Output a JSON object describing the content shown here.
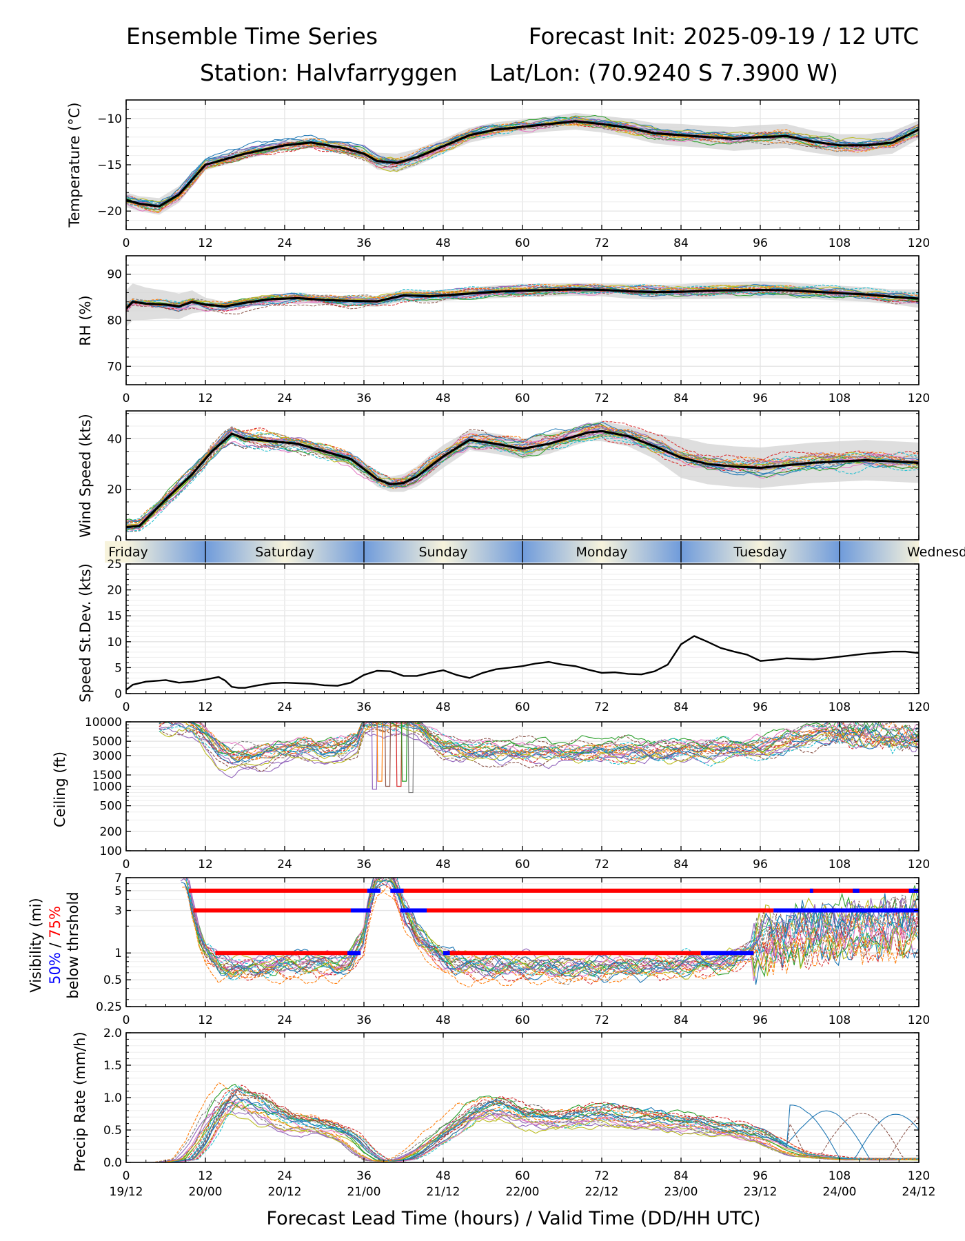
{
  "header": {
    "title": "Ensemble Time Series",
    "forecast_init": "Forecast Init: 2025-09-19 / 12 UTC",
    "station": "Station: Halvfarryggen",
    "latlon": "Lat/Lon: (70.9240 S 7.3900 W)"
  },
  "xaxis": {
    "label": "Forecast Lead Time (hours) / Valid Time (DD/HH UTC)",
    "lead_ticks": [
      "0",
      "12",
      "24",
      "36",
      "48",
      "60",
      "72",
      "84",
      "96",
      "108",
      "120"
    ],
    "valid_ticks": [
      "19/12",
      "20/00",
      "20/12",
      "21/00",
      "21/12",
      "22/00",
      "22/12",
      "23/00",
      "23/12",
      "24/00",
      "24/12"
    ]
  },
  "day_band": {
    "days": [
      "Friday",
      "Saturday",
      "Sunday",
      "Monday",
      "Tuesday",
      "Wednesday"
    ],
    "colors": {
      "light": "#f7f3dc",
      "blue": "#6f9bdb"
    }
  },
  "colors": {
    "mean": "#000000",
    "spread": "#d3d3d3",
    "threshold50": "#0000ff",
    "threshold75": "#ff0000",
    "members": [
      "#1f77b4",
      "#ff7f0e",
      "#2ca02c",
      "#d62728",
      "#9467bd",
      "#8c564b",
      "#e377c2",
      "#7f7f7f",
      "#bcbd22",
      "#17becf"
    ]
  },
  "panels": {
    "temperature": {
      "ylabel": "Temperature (°C)",
      "ticks": [
        "−10",
        "−15",
        "−20"
      ]
    },
    "rh": {
      "ylabel": "RH (%)",
      "ticks": [
        "90",
        "80",
        "70"
      ]
    },
    "wind": {
      "ylabel": "Wind Speed (kts)",
      "ticks": [
        "40",
        "20",
        "0"
      ]
    },
    "sd": {
      "ylabel": "Speed St.Dev. (kts)",
      "ticks": [
        "25",
        "20",
        "15",
        "10",
        "5",
        "0"
      ]
    },
    "ceiling": {
      "ylabel": "Ceiling (ft)",
      "ticks": [
        "10000",
        "5000",
        "3000",
        "1500",
        "1000",
        "500",
        "200",
        "100"
      ]
    },
    "visibility": {
      "ylabel_1": "Visibility (mi)",
      "ylabel_50": "50%",
      "ylabel_sep": " / ",
      "ylabel_75": "75%",
      "ylabel_3": "below thrshold",
      "ticks": [
        "7",
        "5",
        "3",
        "1",
        "0.5",
        "0.25"
      ]
    },
    "precip": {
      "ylabel": "Precip Rate (mm/h)",
      "ticks": [
        "2.0",
        "1.5",
        "1.0",
        "0.5",
        "0.0"
      ]
    }
  },
  "chart_data": [
    {
      "id": "temperature",
      "type": "line",
      "ylabel": "Temperature (°C)",
      "ylim": [
        -22,
        -8
      ],
      "xlim": [
        0,
        120
      ],
      "mean": {
        "x": [
          0,
          2,
          5,
          8,
          12,
          18,
          24,
          28,
          33,
          36,
          38,
          41,
          44,
          48,
          52,
          56,
          60,
          64,
          68,
          72,
          76,
          80,
          84,
          88,
          92,
          96,
          100,
          104,
          108,
          112,
          116,
          120
        ],
        "y": [
          -18.8,
          -19.2,
          -19.5,
          -18.2,
          -15,
          -13.8,
          -12.9,
          -12.6,
          -13.2,
          -13.8,
          -14.6,
          -14.8,
          -14.2,
          -13,
          -11.8,
          -11.2,
          -10.9,
          -10.6,
          -10.3,
          -10.6,
          -11,
          -11.6,
          -11.8,
          -12,
          -12.2,
          -12,
          -11.9,
          -12.5,
          -12.9,
          -12.9,
          -12.6,
          -11.2
        ]
      },
      "spread_half_width": [
        0.8,
        0.8,
        0.9,
        0.9,
        0.6,
        0.6,
        0.5,
        0.5,
        0.6,
        0.7,
        0.9,
        1,
        0.9,
        0.8,
        0.8,
        0.8,
        0.8,
        0.8,
        0.9,
        0.9,
        1,
        1.1,
        1.2,
        1.2,
        1.3,
        1.3,
        1.3,
        1.2,
        1.2,
        1.2,
        1.2,
        1
      ]
    },
    {
      "id": "rh",
      "type": "line",
      "ylabel": "RH (%)",
      "ylim": [
        66,
        94
      ],
      "xlim": [
        0,
        120
      ],
      "mean": {
        "x": [
          0,
          1,
          3,
          6,
          8,
          10,
          12,
          15,
          18,
          22,
          26,
          30,
          34,
          38,
          42,
          46,
          50,
          56,
          62,
          68,
          72,
          76,
          80,
          84,
          88,
          92,
          96,
          100,
          104,
          108,
          112,
          116,
          120
        ],
        "y": [
          82.5,
          84,
          83.6,
          83.4,
          83,
          84,
          83.4,
          83,
          83.8,
          84.6,
          84.8,
          84.4,
          84.2,
          84.1,
          85.4,
          85.2,
          85.6,
          86.2,
          86.5,
          86.7,
          86.6,
          86.3,
          86.1,
          86.2,
          86.4,
          86.5,
          86.6,
          86.5,
          86.2,
          85.9,
          85.6,
          85.1,
          84.7
        ]
      },
      "spread_half_width": [
        4,
        4,
        3.5,
        3,
        2.8,
        2.5,
        1.5,
        1,
        1,
        1,
        1,
        1,
        1,
        1.2,
        1.2,
        1.2,
        1.2,
        1.4,
        1.4,
        1.4,
        1.4,
        1.6,
        1.6,
        1.6,
        1.8,
        1.8,
        1.8,
        1.8,
        1.6,
        1.6,
        1.6,
        1.6,
        2
      ]
    },
    {
      "id": "wind",
      "type": "line",
      "ylabel": "Wind Speed (kts)",
      "ylim": [
        0,
        51
      ],
      "xlim": [
        0,
        120
      ],
      "mean": {
        "x": [
          0,
          2,
          6,
          10,
          13,
          16,
          18,
          22,
          26,
          30,
          34,
          38,
          40,
          42,
          44,
          46,
          48,
          52,
          56,
          60,
          64,
          68,
          70,
          72,
          76,
          80,
          84,
          88,
          92,
          96,
          100,
          104,
          108,
          112,
          116,
          120
        ],
        "y": [
          5,
          5.5,
          16,
          26,
          35,
          42,
          40,
          39,
          38,
          35,
          32,
          24,
          22,
          22.5,
          25,
          29,
          33,
          39.5,
          38,
          36,
          38,
          41,
          42.5,
          43,
          41,
          37,
          32.5,
          30,
          29,
          28.5,
          29.5,
          30.5,
          31,
          31.5,
          31,
          30.5
        ]
      },
      "spread_half_width": [
        1,
        1,
        1.5,
        1.5,
        1.5,
        1.5,
        1.5,
        1.5,
        1.5,
        2,
        2.5,
        3,
        3,
        3.5,
        4,
        4.5,
        4.5,
        4,
        4,
        4,
        4,
        3.5,
        3.5,
        4,
        4,
        5,
        8,
        8,
        8,
        8,
        8,
        8,
        8,
        8,
        8,
        8
      ]
    },
    {
      "id": "speed_stdev",
      "type": "line",
      "ylabel": "Speed St.Dev. (kts)",
      "ylim": [
        0,
        25
      ],
      "xlim": [
        0,
        120
      ],
      "x": [
        0,
        1,
        3,
        5,
        6,
        8,
        10,
        12,
        14,
        15,
        16,
        17,
        18,
        20,
        22,
        24,
        26,
        28,
        30,
        32,
        34,
        36,
        38,
        40,
        42,
        44,
        46,
        48,
        50,
        52,
        54,
        56,
        58,
        60,
        62,
        64,
        66,
        68,
        70,
        72,
        74,
        76,
        78,
        80,
        82,
        84,
        86,
        88,
        90,
        92,
        94,
        96,
        98,
        100,
        102,
        104,
        106,
        108,
        110,
        112,
        114,
        116,
        118,
        120
      ],
      "y": [
        0.7,
        1.7,
        2.3,
        2.5,
        2.6,
        2.1,
        2.3,
        2.7,
        3.2,
        2.5,
        1.3,
        1.1,
        1.1,
        1.6,
        2,
        2.1,
        2,
        1.9,
        1.6,
        1.5,
        2.1,
        3.6,
        4.4,
        4.3,
        3.4,
        3.4,
        4,
        4.5,
        3.6,
        3,
        4,
        4.7,
        5,
        5.3,
        5.8,
        6.1,
        5.6,
        5.3,
        4.6,
        4,
        4.1,
        3.8,
        3.7,
        4.3,
        5.6,
        9.5,
        11.1,
        10,
        8.8,
        8.1,
        7.5,
        6.3,
        6.5,
        6.8,
        6.7,
        6.6,
        6.8,
        7.1,
        7.4,
        7.7,
        7.9,
        8.1,
        8.1,
        7.8
      ]
    },
    {
      "id": "ceiling",
      "type": "line",
      "ylabel": "Ceiling (ft)",
      "scale": "log",
      "ylim": [
        100,
        10000
      ],
      "xlim": [
        0,
        120
      ],
      "median": {
        "x": [
          5,
          8,
          10,
          12,
          14,
          16,
          18,
          22,
          24,
          27,
          30,
          33,
          35,
          36,
          38,
          40,
          42,
          44,
          46,
          48,
          52,
          56,
          60,
          64,
          68,
          72,
          76,
          80,
          84,
          88,
          92,
          96,
          100,
          104,
          108,
          112,
          116,
          120
        ],
        "y": [
          10000,
          10000,
          9000,
          6000,
          3600,
          2900,
          3000,
          3300,
          3700,
          4200,
          3600,
          3900,
          5000,
          9000,
          10000,
          10000,
          10000,
          9000,
          6000,
          4200,
          3600,
          3500,
          3400,
          3300,
          3300,
          3400,
          3300,
          3400,
          3500,
          3600,
          3800,
          4000,
          5000,
          6000,
          7000,
          6500,
          6000,
          5800
        ]
      }
    },
    {
      "id": "visibility",
      "type": "line",
      "ylabel": "Visibility (mi)",
      "scale": "log",
      "ylim": [
        0.25,
        7
      ],
      "xlim": [
        0,
        120
      ],
      "median": {
        "x": [
          9,
          10,
          11,
          12,
          14,
          16,
          20,
          24,
          28,
          32,
          34,
          36,
          37,
          38,
          40,
          42,
          44,
          46,
          48,
          50,
          54,
          58,
          62,
          66,
          70,
          74,
          78,
          82,
          86,
          88,
          90,
          92,
          94,
          96,
          100,
          104,
          108,
          112,
          116,
          120
        ],
        "y": [
          7,
          3,
          1.5,
          1,
          0.7,
          0.62,
          0.65,
          0.7,
          0.72,
          0.7,
          0.8,
          1.5,
          4,
          7,
          7,
          3,
          1.6,
          1.1,
          0.85,
          0.72,
          0.7,
          0.68,
          0.66,
          0.65,
          0.66,
          0.66,
          0.67,
          0.68,
          0.7,
          0.72,
          0.75,
          0.8,
          1,
          1.2,
          1.5,
          1.6,
          1.7,
          1.8,
          1.9,
          2
        ]
      },
      "thresholds": [
        {
          "level": 5,
          "p75": [
            [
              9.5,
              36.5
            ],
            [
              40.5,
              120
            ]
          ],
          "p50": [
            [
              36.5,
              38.5
            ],
            [
              40,
              42
            ],
            [
              103.5,
              104
            ],
            [
              110,
              111
            ],
            [
              118.5,
              120
            ]
          ]
        },
        {
          "level": 3,
          "p75": [
            [
              10.2,
              36
            ],
            [
              41.5,
              45
            ],
            [
              45,
              97
            ],
            [
              97,
              98
            ]
          ],
          "p50": [
            [
              34,
              37
            ],
            [
              41.5,
              45.5
            ],
            [
              98,
              120
            ]
          ]
        },
        {
          "level": 1,
          "p75": [
            [
              13.5,
              33.5
            ],
            [
              48,
              87
            ]
          ],
          "p50": [
            [
              33.5,
              35.5
            ],
            [
              48,
              49
            ],
            [
              87,
              95
            ]
          ]
        }
      ]
    },
    {
      "id": "precip",
      "type": "line",
      "ylabel": "Precip Rate (mm/h)",
      "ylim": [
        0,
        2
      ],
      "xlim": [
        0,
        120
      ],
      "median": {
        "x": [
          0,
          6,
          9,
          11,
          13,
          15,
          16,
          18,
          20,
          22,
          24,
          26,
          28,
          30,
          32,
          34,
          36,
          38,
          40,
          42,
          44,
          46,
          48,
          50,
          52,
          54,
          56,
          58,
          60,
          62,
          64,
          66,
          68,
          70,
          72,
          74,
          76,
          78,
          80,
          82,
          84,
          86,
          88,
          90,
          92,
          94,
          96,
          98,
          100,
          102,
          104,
          106,
          108,
          110,
          112,
          114,
          116,
          118,
          120
        ],
        "y": [
          0,
          0,
          0.05,
          0.3,
          0.7,
          0.95,
          1,
          0.92,
          0.85,
          0.75,
          0.65,
          0.6,
          0.58,
          0.55,
          0.48,
          0.35,
          0.15,
          0.03,
          0.02,
          0.05,
          0.15,
          0.3,
          0.45,
          0.6,
          0.75,
          0.8,
          0.85,
          0.8,
          0.72,
          0.7,
          0.65,
          0.66,
          0.7,
          0.72,
          0.74,
          0.72,
          0.7,
          0.68,
          0.66,
          0.62,
          0.6,
          0.58,
          0.55,
          0.52,
          0.5,
          0.45,
          0.4,
          0.3,
          0.2,
          0.12,
          0.1,
          0.08,
          0.06,
          0.05,
          0.05,
          0.05,
          0.05,
          0.05,
          0.05
        ]
      }
    }
  ]
}
